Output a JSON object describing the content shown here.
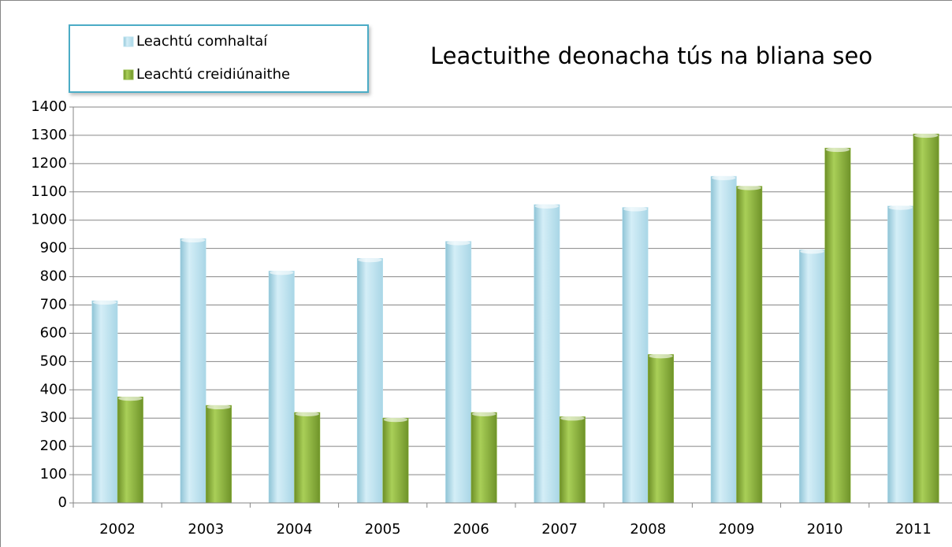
{
  "chart_data": {
    "type": "bar",
    "title": "Leactuithe deonacha tús na bliana seo",
    "categories": [
      "2002",
      "2003",
      "2004",
      "2005",
      "2006",
      "2007",
      "2008",
      "2009",
      "2010",
      "2011"
    ],
    "series": [
      {
        "name": "Leachtú comhaltaí",
        "color": "#b9e1ef",
        "values": [
          715,
          935,
          820,
          865,
          925,
          1055,
          1045,
          1155,
          895,
          1050
        ]
      },
      {
        "name": "Leachtú creidiúnaithe",
        "color": "#8fb840",
        "values": [
          375,
          345,
          320,
          300,
          320,
          305,
          525,
          1120,
          1255,
          1305
        ]
      }
    ],
    "ylim": [
      0,
      1400
    ],
    "yticks": [
      0,
      100,
      200,
      300,
      400,
      500,
      600,
      700,
      800,
      900,
      1000,
      1100,
      1200,
      1300,
      1400
    ],
    "grid": true,
    "legend": "top-left"
  }
}
